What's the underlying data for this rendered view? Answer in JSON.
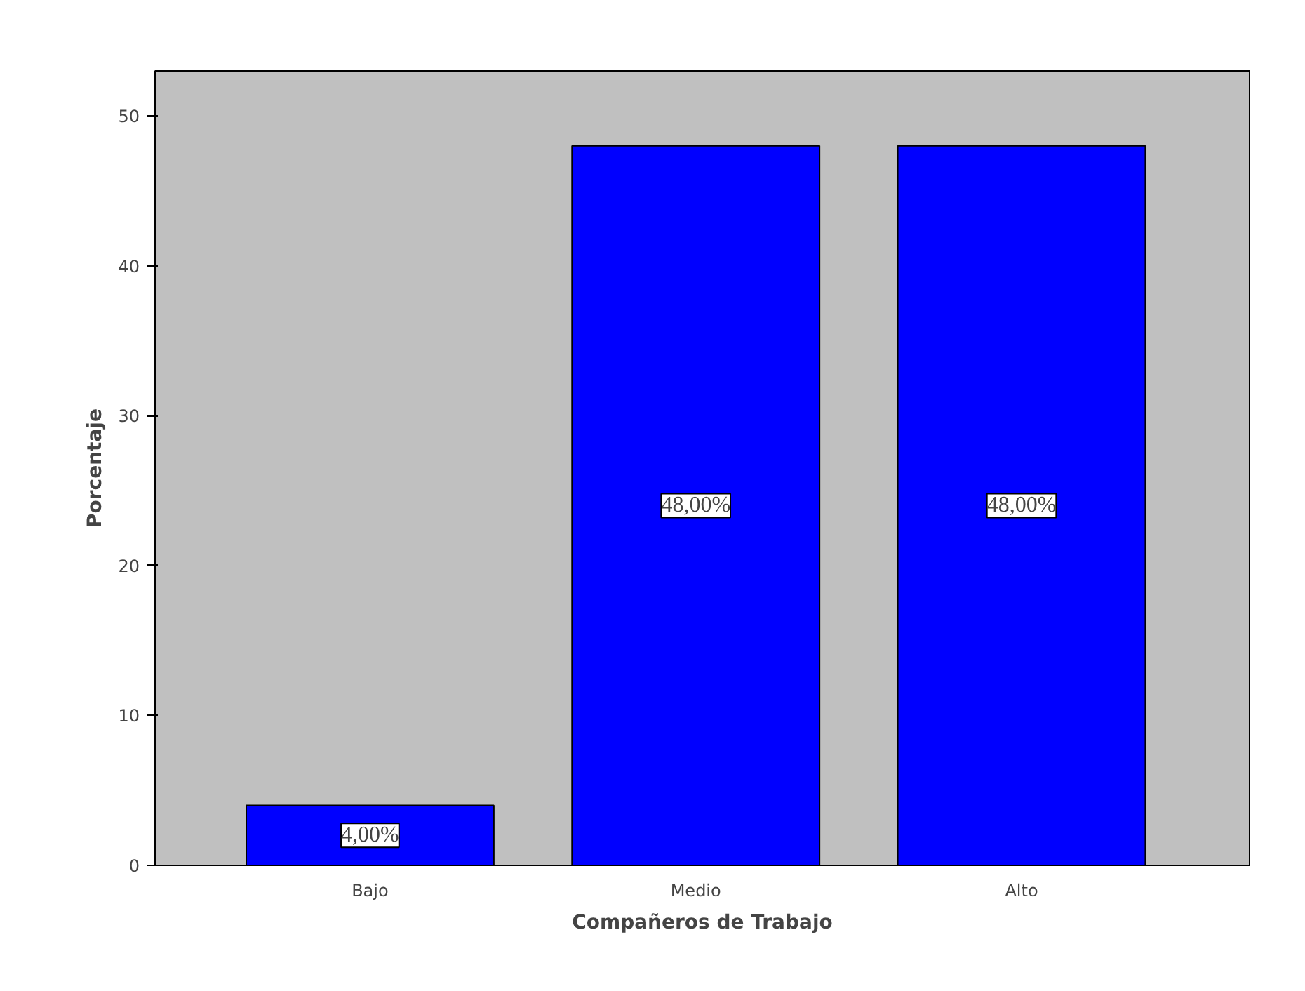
{
  "chart_data": {
    "type": "bar",
    "xlabel": "Compañeros de Trabajo",
    "ylabel": "Porcentaje",
    "categories": [
      "Bajo",
      "Medio",
      "Alto"
    ],
    "values": [
      4,
      48,
      48
    ],
    "value_labels": [
      "4,00%",
      "48,00%",
      "48,00%"
    ],
    "color": "#0000ff",
    "ylim": [
      0,
      53
    ],
    "yticks": [
      0,
      10,
      20,
      30,
      40,
      50
    ],
    "grid": false
  }
}
